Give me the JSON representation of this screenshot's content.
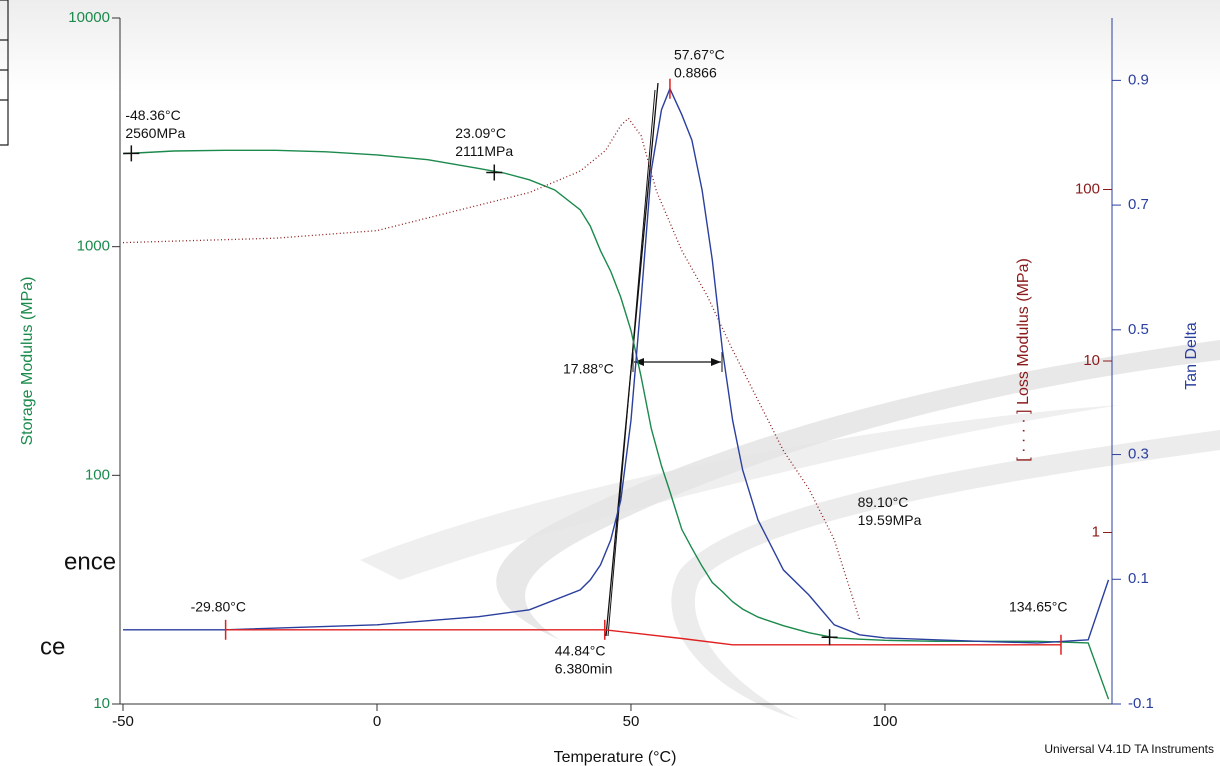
{
  "chart_data": {
    "type": "line",
    "x_label": "Temperature (°C)",
    "y_label": "Storage Modulus (MPa)",
    "y2_label": "[ · · · · ] Loss Modulus (MPa)",
    "y3_label": "Tan Delta",
    "footer": "Universal V4.1D TA Instruments",
    "fragments": [
      "ence",
      "ce"
    ],
    "xlim": [
      -50,
      144.3
    ],
    "xticks": [
      -50,
      0,
      50,
      100
    ],
    "ylim": [
      10,
      10000
    ],
    "ylog": true,
    "yticks": [
      10,
      100,
      1000,
      10000
    ],
    "y2lim": [
      0.1,
      1000
    ],
    "y2log": true,
    "y2ticks": [
      1,
      10,
      100
    ],
    "y3lim": [
      -0.1,
      1.0
    ],
    "y3ticks": [
      -0.1,
      0.1,
      0.3,
      0.5,
      0.7,
      0.9
    ],
    "series": [
      {
        "color": "#1b8a4c",
        "axis": "y",
        "style": "solid",
        "x": [
          -50,
          -40,
          -30,
          -20,
          -10,
          0,
          10,
          20,
          25,
          30,
          35,
          40,
          42,
          44,
          46,
          48,
          50,
          52,
          54,
          56,
          57.67,
          60,
          62,
          64,
          66,
          68,
          70,
          72,
          75,
          80,
          85,
          90,
          95,
          100,
          110,
          120,
          130,
          140,
          144
        ],
        "values": [
          2550,
          2620,
          2640,
          2640,
          2600,
          2520,
          2400,
          2200,
          2100,
          1960,
          1770,
          1450,
          1230,
          960,
          780,
          600,
          430,
          270,
          160,
          110,
          85,
          58,
          48,
          40,
          34,
          31,
          28,
          26,
          24,
          22,
          20.5,
          19.5,
          19.2,
          19,
          18.8,
          18.8,
          18.8,
          18.5,
          10.5
        ]
      },
      {
        "color": "#8b1a1a",
        "axis": "y2",
        "style": "dotted",
        "x": [
          -50,
          -20,
          0,
          20,
          30,
          40,
          45,
          48,
          49.5,
          52,
          55,
          60,
          65,
          70,
          75,
          80,
          85,
          90,
          95
        ],
        "values": [
          49,
          52,
          57.6,
          81,
          96,
          128,
          169,
          236,
          260,
          206,
          98,
          44,
          24,
          11.6,
          5.9,
          3.0,
          1.8,
          0.91,
          0.31
        ]
      },
      {
        "color": "#2b3f9e",
        "axis": "y3",
        "style": "solid",
        "x": [
          -50,
          -30,
          0,
          20,
          30,
          40,
          42,
          44,
          46,
          48,
          50,
          52,
          54,
          56,
          57.67,
          60,
          62,
          64,
          66,
          68,
          70,
          72,
          75,
          80,
          85,
          90,
          95,
          100,
          110,
          120,
          130,
          140,
          144
        ],
        "values": [
          0.019,
          0.019,
          0.027,
          0.04,
          0.051,
          0.083,
          0.099,
          0.123,
          0.163,
          0.227,
          0.355,
          0.548,
          0.756,
          0.853,
          0.8866,
          0.845,
          0.804,
          0.724,
          0.612,
          0.468,
          0.355,
          0.275,
          0.195,
          0.115,
          0.075,
          0.027,
          0.011,
          0.006,
          0.003,
          0.0,
          -0.002,
          0.003,
          0.099
        ]
      },
      {
        "color": "#e02020",
        "axis": "y3",
        "style": "solid",
        "x": [
          -29.8,
          44.84,
          60,
          70,
          134.65
        ],
        "values": [
          0.019,
          0.019,
          0.005,
          -0.005,
          -0.005
        ]
      }
    ],
    "annotations": [
      {
        "lines": [
          "-48.36°C",
          "2560MPa"
        ],
        "x": -48.36,
        "y": 2560,
        "axis": "y"
      },
      {
        "lines": [
          "23.09°C",
          "2111MPa"
        ],
        "x": 23.09,
        "y": 2111,
        "axis": "y"
      },
      {
        "lines": [
          "57.67°C",
          "0.8866"
        ],
        "x": 57.67,
        "y": 0.8866,
        "axis": "y3"
      },
      {
        "lines": [
          "89.10°C",
          "19.59MPa"
        ],
        "x": 89.1,
        "y": 19.59,
        "axis": "y"
      },
      {
        "lines": [
          "-29.80°C"
        ],
        "x": -29.8,
        "y": 0.019,
        "axis": "y3"
      },
      {
        "lines": [
          "44.84°C",
          "6.380min"
        ],
        "x": 44.84,
        "y": 0.019,
        "axis": "y3"
      },
      {
        "lines": [
          "134.65°C"
        ],
        "x": 134.65,
        "y": -0.005,
        "axis": "y3"
      },
      {
        "lines": [
          "17.88°C"
        ]
      }
    ]
  }
}
